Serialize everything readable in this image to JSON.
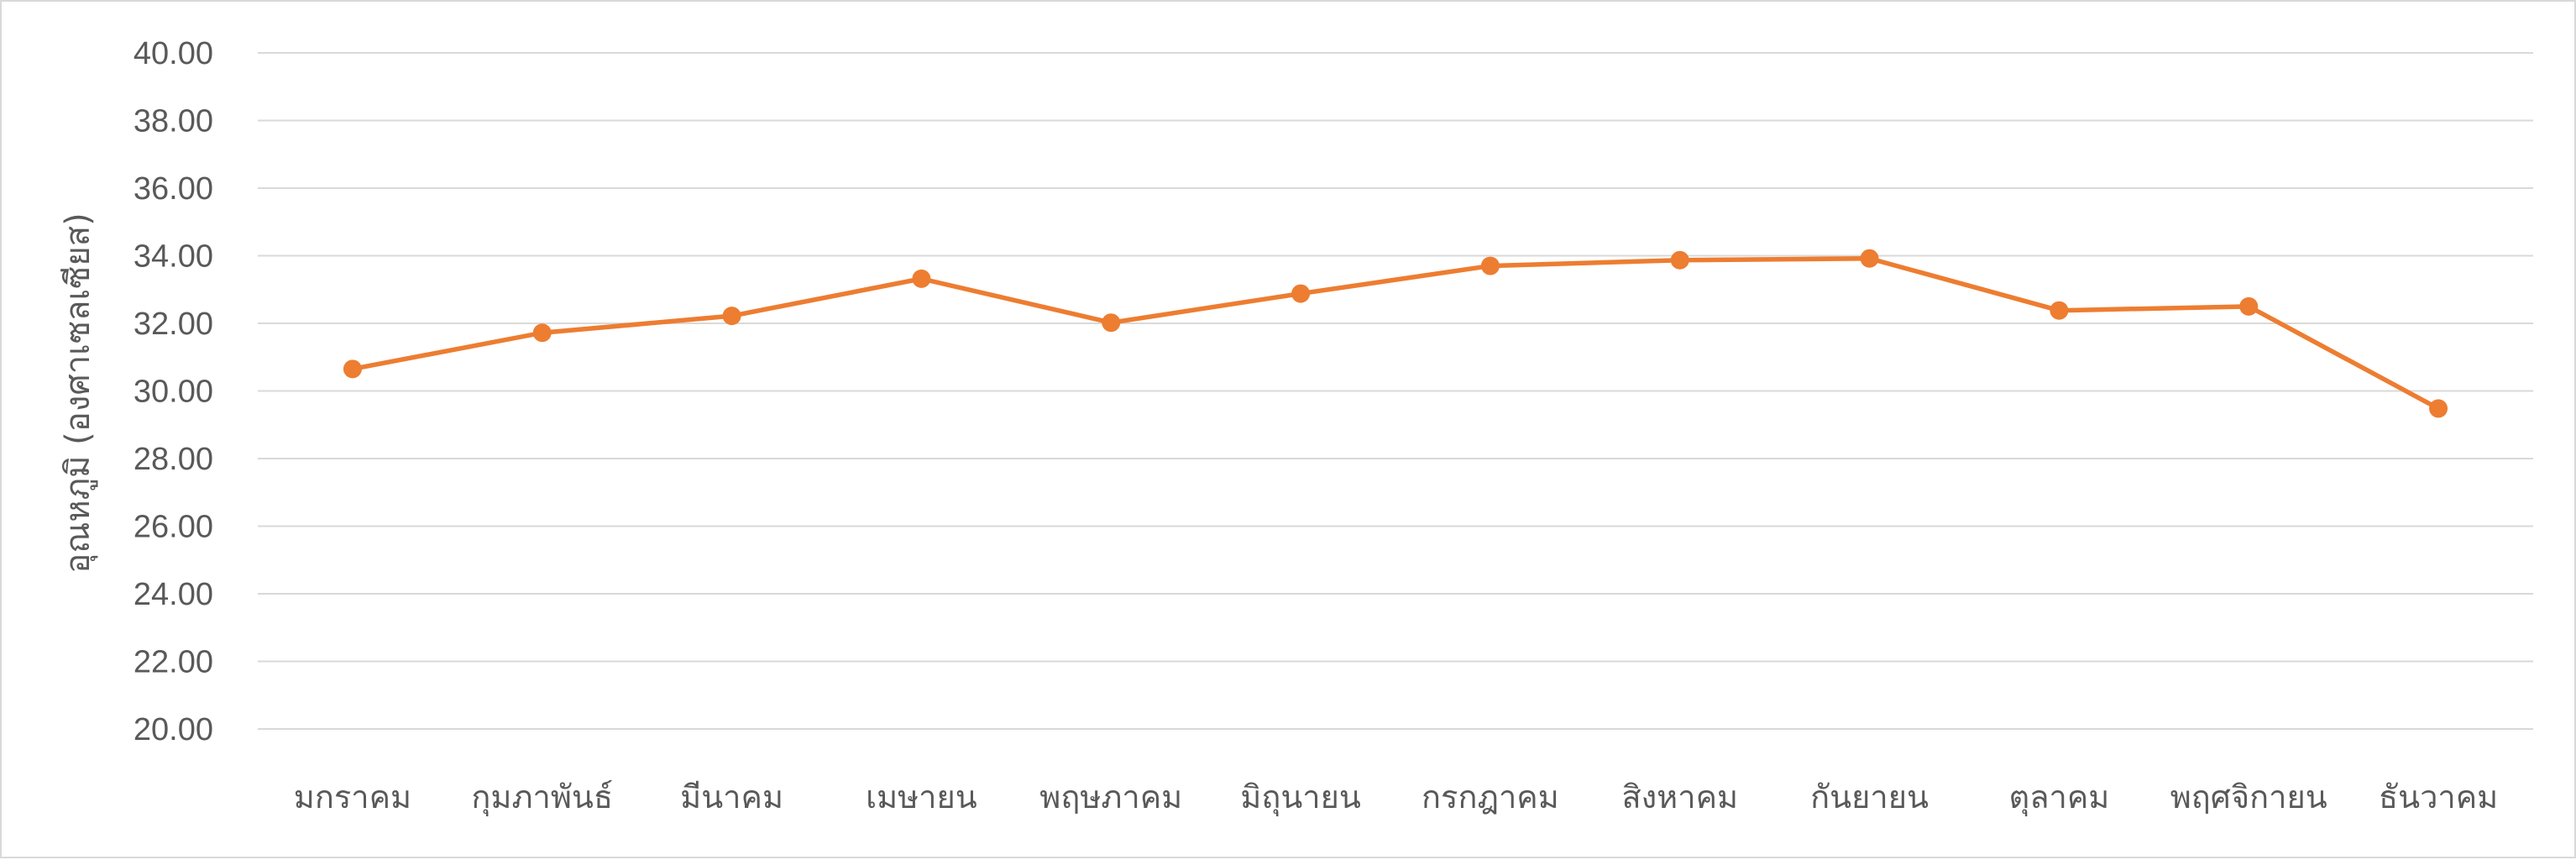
{
  "chart_data": {
    "type": "line",
    "title": "",
    "xlabel": "",
    "ylabel": "อุณหภูมิ (องศาเซลเซียส)",
    "ylim": [
      20,
      40
    ],
    "yticks": [
      "20.00",
      "22.00",
      "24.00",
      "26.00",
      "28.00",
      "30.00",
      "32.00",
      "34.00",
      "36.00",
      "38.00",
      "40.00"
    ],
    "grid": true,
    "legend": "none",
    "categories": [
      "มกราคม",
      "กุมภาพันธ์",
      "มีนาคม",
      "เมษายน",
      "พฤษภาคม",
      "มิถุนายน",
      "กรกฎาคม",
      "สิงหาคม",
      "กันยายน",
      "ตุลาคม",
      "พฤศจิกายน",
      "ธันวาคม"
    ],
    "series": [
      {
        "color": "#ED7D31",
        "values": [
          30.65,
          31.72,
          32.22,
          33.32,
          32.02,
          32.88,
          33.7,
          33.87,
          33.92,
          32.38,
          32.5,
          29.48
        ]
      }
    ]
  }
}
